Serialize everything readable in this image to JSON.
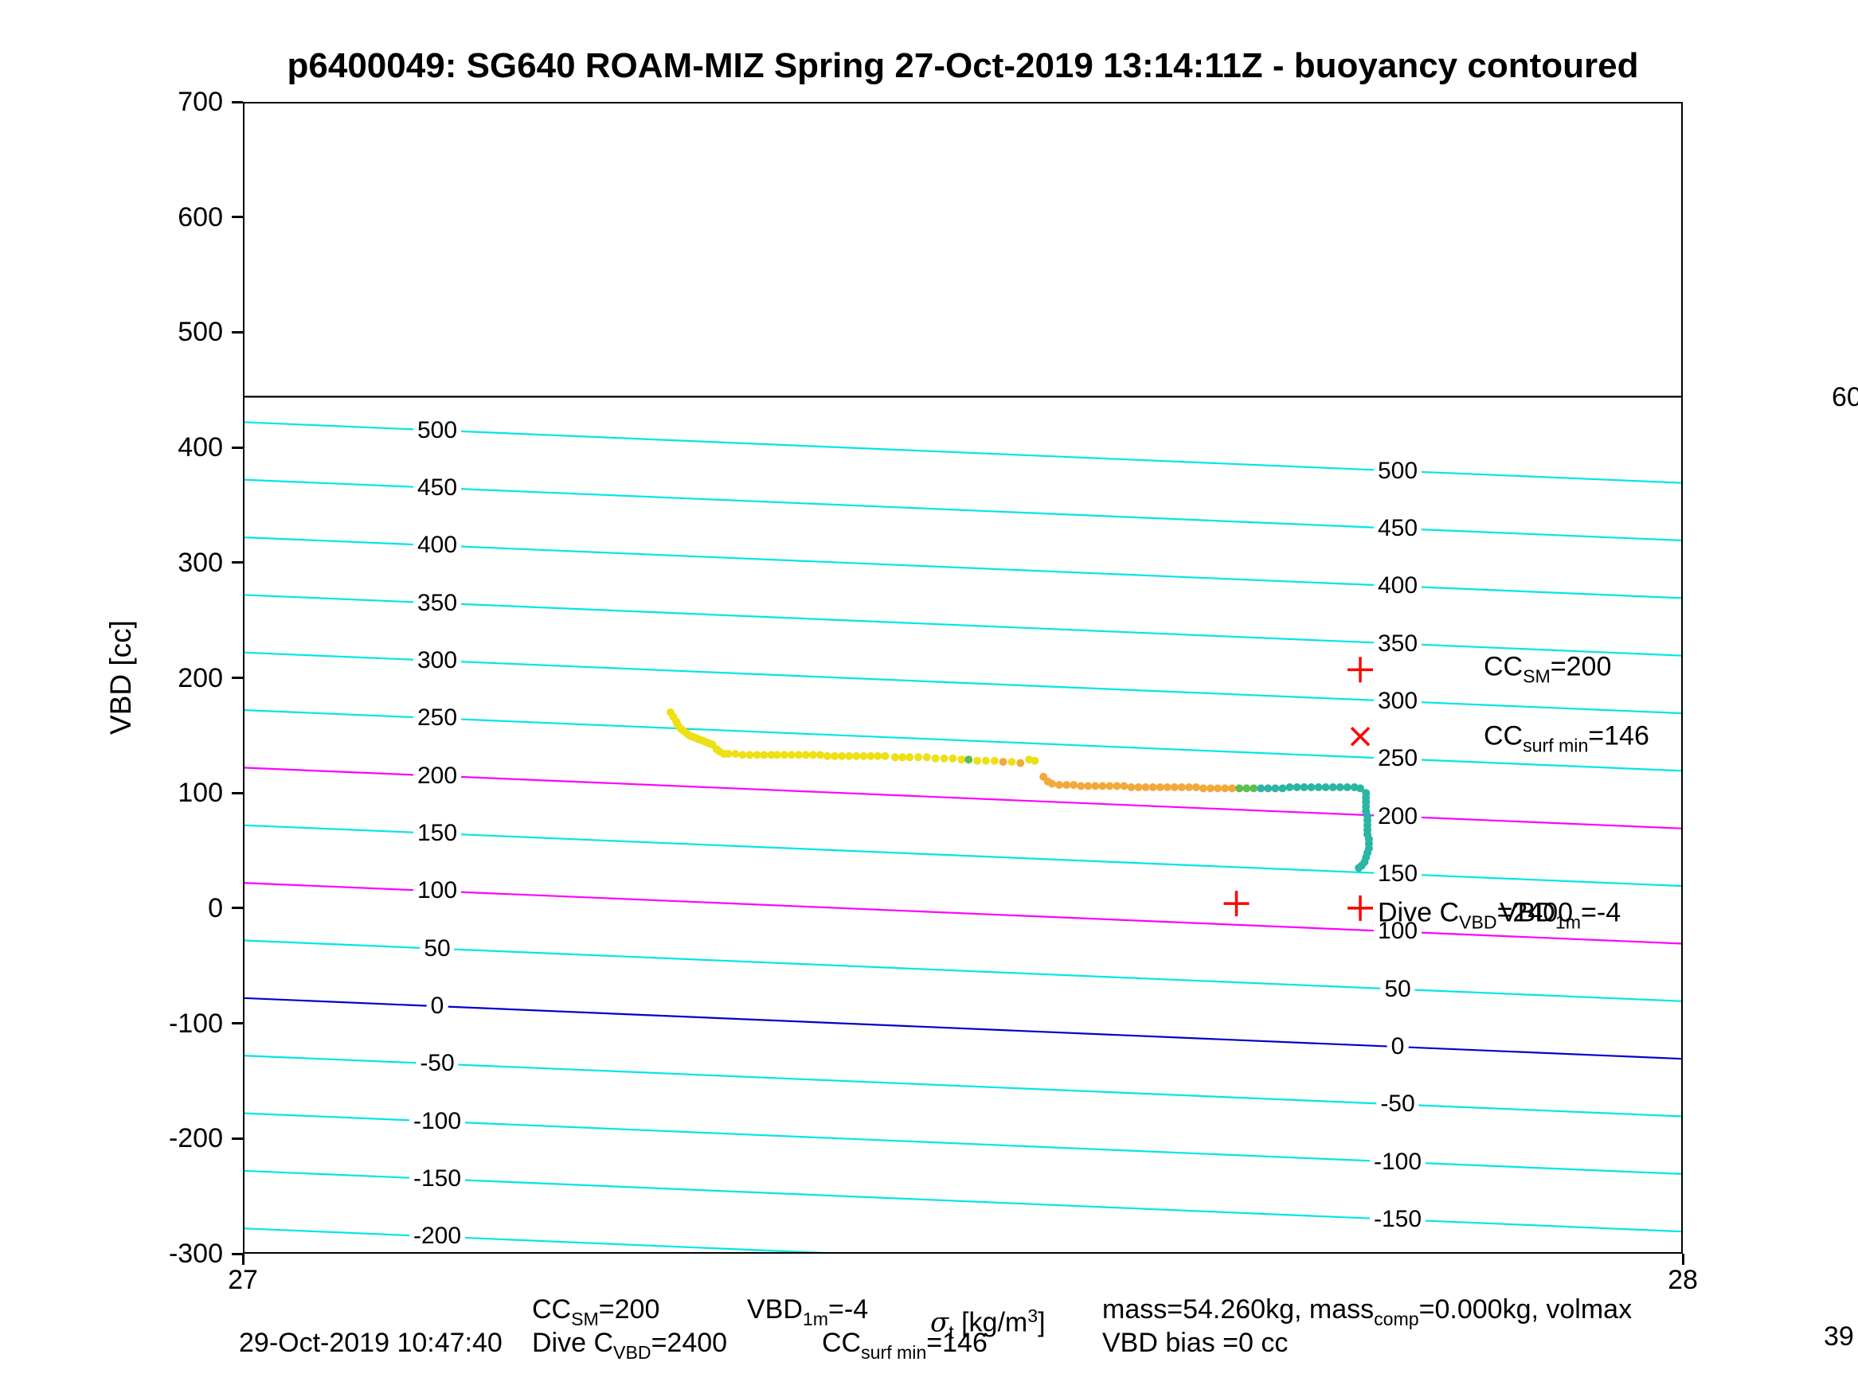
{
  "title": "p6400049: SG640 ROAM-MIZ Spring 27-Oct-2019 13:14:11Z - buoyancy contoured",
  "chart_data": {
    "type": "scatter",
    "title": "p6400049: SG640 ROAM-MIZ Spring 27-Oct-2019 13:14:11Z - buoyancy contoured",
    "xlabel": "sigma_t [kg/m^3]",
    "ylabel": "VBD [cc]",
    "xlim": [
      27,
      28
    ],
    "ylim": [
      -300,
      700
    ],
    "x_ticks": [
      27,
      28
    ],
    "y_ticks": [
      700,
      600,
      500,
      400,
      300,
      200,
      100,
      0,
      -100,
      -200,
      -300
    ],
    "grid": false,
    "legend": false,
    "horizontal_line_vbd": 444,
    "contours": {
      "values": [
        500,
        450,
        400,
        350,
        300,
        250,
        200,
        150,
        100,
        50,
        0,
        -50,
        -100,
        -150,
        -200
      ],
      "vbd_offset_at_xmin": -78,
      "slope_cc_per_sigma": -52.8,
      "label_x_left": 27.135,
      "label_x_right": 27.802,
      "color_default": "#00E6E6",
      "color_highlight": "#FF00FF",
      "highlight_values": [
        200,
        100
      ],
      "color_zero": "#0000CC",
      "zero_value": 0
    },
    "marker_color": "#FF0000",
    "red_markers": [
      {
        "shape": "plus",
        "x": 27.776,
        "vbd": 207
      },
      {
        "shape": "cross",
        "x": 27.776,
        "vbd": 149
      },
      {
        "shape": "plus",
        "x": 27.69,
        "vbd": 4
      },
      {
        "shape": "plus",
        "x": 27.776,
        "vbd": 0
      }
    ],
    "track": {
      "point_colors": {
        "y": "#EDE014",
        "o": "#F2A93C",
        "g": "#5DBE50",
        "t": "#2BB5A5"
      },
      "points": [
        [
          27.297,
          170,
          "y"
        ],
        [
          27.299,
          166,
          "y"
        ],
        [
          27.301,
          162,
          "y"
        ],
        [
          27.302,
          159,
          "y"
        ],
        [
          27.304,
          156,
          "y"
        ],
        [
          27.306,
          154,
          "y"
        ],
        [
          27.308,
          152,
          "y"
        ],
        [
          27.31,
          150,
          "y"
        ],
        [
          27.312,
          149,
          "y"
        ],
        [
          27.314,
          148,
          "y"
        ],
        [
          27.316,
          147,
          "y"
        ],
        [
          27.318,
          146,
          "y"
        ],
        [
          27.32,
          145,
          "y"
        ],
        [
          27.322,
          144,
          "y"
        ],
        [
          27.324,
          143,
          "y"
        ],
        [
          27.326,
          142,
          "y"
        ],
        [
          27.329,
          138,
          "y"
        ],
        [
          27.331,
          136,
          "y"
        ],
        [
          27.334,
          134,
          "y"
        ],
        [
          27.337,
          134,
          "y"
        ],
        [
          27.342,
          134,
          "y"
        ],
        [
          27.347,
          133,
          "y"
        ],
        [
          27.352,
          133,
          "y"
        ],
        [
          27.357,
          133,
          "y"
        ],
        [
          27.362,
          133,
          "y"
        ],
        [
          27.367,
          133,
          "y"
        ],
        [
          27.371,
          133,
          "y"
        ],
        [
          27.376,
          133,
          "y"
        ],
        [
          27.381,
          133,
          "y"
        ],
        [
          27.386,
          133,
          "y"
        ],
        [
          27.391,
          133,
          "y"
        ],
        [
          27.396,
          133,
          "y"
        ],
        [
          27.401,
          133,
          "y"
        ],
        [
          27.406,
          132,
          "y"
        ],
        [
          27.411,
          132,
          "y"
        ],
        [
          27.416,
          132,
          "y"
        ],
        [
          27.421,
          132,
          "y"
        ],
        [
          27.426,
          132,
          "y"
        ],
        [
          27.431,
          132,
          "y"
        ],
        [
          27.436,
          132,
          "y"
        ],
        [
          27.441,
          132,
          "y"
        ],
        [
          27.446,
          132,
          "y"
        ],
        [
          27.453,
          131,
          "y"
        ],
        [
          27.458,
          131,
          "y"
        ],
        [
          27.463,
          131,
          "y"
        ],
        [
          27.469,
          131,
          "y"
        ],
        [
          27.475,
          131,
          "y"
        ],
        [
          27.481,
          130,
          "y"
        ],
        [
          27.487,
          130,
          "y"
        ],
        [
          27.493,
          130,
          "y"
        ],
        [
          27.499,
          129,
          "y"
        ],
        [
          27.504,
          129,
          "g"
        ],
        [
          27.51,
          128,
          "y"
        ],
        [
          27.516,
          128,
          "y"
        ],
        [
          27.522,
          128,
          "y"
        ],
        [
          27.528,
          127,
          "o"
        ],
        [
          27.534,
          127,
          "y"
        ],
        [
          27.54,
          126,
          "o"
        ],
        [
          27.546,
          129,
          "y"
        ],
        [
          27.55,
          128,
          "y"
        ],
        [
          27.556,
          114,
          "o"
        ],
        [
          27.559,
          110,
          "o"
        ],
        [
          27.562,
          108,
          "o"
        ],
        [
          27.567,
          107,
          "o"
        ],
        [
          27.572,
          107,
          "o"
        ],
        [
          27.577,
          107,
          "o"
        ],
        [
          27.582,
          106,
          "o"
        ],
        [
          27.587,
          106,
          "o"
        ],
        [
          27.592,
          106,
          "o"
        ],
        [
          27.597,
          106,
          "o"
        ],
        [
          27.602,
          106,
          "o"
        ],
        [
          27.607,
          106,
          "o"
        ],
        [
          27.612,
          106,
          "o"
        ],
        [
          27.617,
          105,
          "o"
        ],
        [
          27.622,
          105,
          "o"
        ],
        [
          27.627,
          105,
          "o"
        ],
        [
          27.632,
          105,
          "o"
        ],
        [
          27.637,
          105,
          "o"
        ],
        [
          27.642,
          105,
          "o"
        ],
        [
          27.647,
          105,
          "o"
        ],
        [
          27.652,
          105,
          "o"
        ],
        [
          27.657,
          105,
          "o"
        ],
        [
          27.662,
          105,
          "o"
        ],
        [
          27.667,
          104,
          "o"
        ],
        [
          27.672,
          104,
          "o"
        ],
        [
          27.677,
          104,
          "o"
        ],
        [
          27.682,
          104,
          "o"
        ],
        [
          27.687,
          104,
          "o"
        ],
        [
          27.692,
          104,
          "g"
        ],
        [
          27.697,
          104,
          "g"
        ],
        [
          27.702,
          104,
          "g"
        ],
        [
          27.707,
          104,
          "t"
        ],
        [
          27.712,
          104,
          "t"
        ],
        [
          27.717,
          104,
          "t"
        ],
        [
          27.722,
          104,
          "t"
        ],
        [
          27.727,
          105,
          "t"
        ],
        [
          27.732,
          105,
          "t"
        ],
        [
          27.737,
          105,
          "t"
        ],
        [
          27.742,
          105,
          "t"
        ],
        [
          27.747,
          105,
          "t"
        ],
        [
          27.752,
          105,
          "t"
        ],
        [
          27.757,
          105,
          "t"
        ],
        [
          27.762,
          105,
          "t"
        ],
        [
          27.767,
          105,
          "t"
        ],
        [
          27.772,
          105,
          "t"
        ],
        [
          27.776,
          104,
          "t"
        ],
        [
          27.78,
          100,
          "t"
        ],
        [
          27.78,
          96,
          "t"
        ],
        [
          27.78,
          92,
          "t"
        ],
        [
          27.78,
          88,
          "t"
        ],
        [
          27.78,
          84,
          "t"
        ],
        [
          27.781,
          80,
          "t"
        ],
        [
          27.781,
          76,
          "t"
        ],
        [
          27.781,
          72,
          "t"
        ],
        [
          27.781,
          68,
          "t"
        ],
        [
          27.781,
          64,
          "t"
        ],
        [
          27.782,
          60,
          "t"
        ],
        [
          27.782,
          56,
          "t"
        ],
        [
          27.782,
          52,
          "t"
        ],
        [
          27.781,
          48,
          "t"
        ],
        [
          27.78,
          44,
          "t"
        ],
        [
          27.779,
          40,
          "t"
        ],
        [
          27.777,
          37,
          "t"
        ],
        [
          27.775,
          35,
          "t"
        ]
      ]
    }
  },
  "annotations": {
    "cc_sm": {
      "main": "CC",
      "sub": "SM",
      "rest": "=200"
    },
    "cc_surfmin": {
      "main": "CC",
      "sub": "surf min",
      "rest": "=146"
    },
    "vbd_1m": {
      "main": "VBD",
      "sub": "1m",
      "rest": "=-4"
    },
    "dive_cvbd": {
      "main": "Dive C",
      "sub": "VBD",
      "rest": "=2400"
    }
  },
  "footer": {
    "date": "29-Oct-2019 10:47:40",
    "vbd_bias": "VBD bias =0 cc",
    "mass": {
      "pre": "mass=54.260kg, mass",
      "sub": "comp",
      "post": "=0.000kg, volmax"
    },
    "xlabel": {
      "sigma": "σ",
      "sub": "t",
      "unit_pre": " [kg/m",
      "sup": "3",
      "unit_post": "]"
    }
  },
  "edge_labels": {
    "right_mid": "60",
    "bottom_right": "39"
  }
}
